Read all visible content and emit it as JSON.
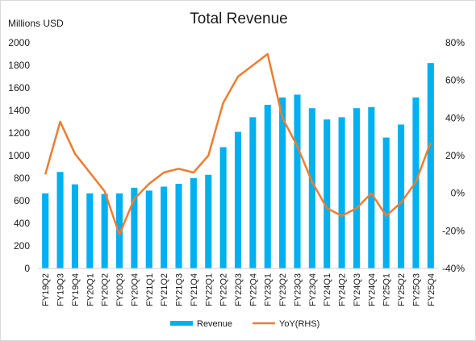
{
  "chart_data": {
    "type": "bar",
    "title": "Total Revenue",
    "ylabel": "Millions USD",
    "ylim": [
      0,
      2000
    ],
    "yticks": [
      "0",
      "200",
      "400",
      "600",
      "800",
      "1000",
      "1200",
      "1400",
      "1600",
      "1800",
      "2000"
    ],
    "y2lim": [
      -40,
      80
    ],
    "y2ticks": [
      "-40%",
      "-20%",
      "0%",
      "20%",
      "40%",
      "60%",
      "80%"
    ],
    "categories": [
      "FY19Q2",
      "FY19Q3",
      "FY19Q4",
      "FY20Q1",
      "FY20Q2",
      "FY20Q3",
      "FY20Q4",
      "FY21Q1",
      "FY21Q2",
      "FY21Q3",
      "FY21Q4",
      "FY22Q1",
      "FY22Q2",
      "FY22Q3",
      "FY22Q4",
      "FY23Q1",
      "FY23Q2",
      "FY23Q3",
      "FY23Q4",
      "FY24Q1",
      "FY24Q2",
      "FY24Q3",
      "FY24Q4",
      "FY25Q1",
      "FY25Q2",
      "FY25Q3",
      "FY25Q4"
    ],
    "grid": false,
    "legend_position": "bottom",
    "series": [
      {
        "name": "Revenue",
        "type": "bar",
        "axis": "left",
        "color": "#00b0f0",
        "values": [
          665,
          855,
          745,
          665,
          660,
          665,
          715,
          690,
          725,
          750,
          800,
          830,
          1075,
          1210,
          1340,
          1450,
          1515,
          1540,
          1420,
          1320,
          1340,
          1420,
          1430,
          1160,
          1275,
          1515,
          1820
        ]
      },
      {
        "name": "YoY(RHS)",
        "type": "line",
        "axis": "right",
        "color": "#ed7d31",
        "values": [
          10,
          38,
          21,
          11,
          1,
          -22,
          -3,
          5,
          11,
          13,
          11,
          20,
          48,
          62,
          68,
          74,
          40,
          25,
          6,
          -8,
          -12,
          -8,
          0,
          -12,
          -5,
          6,
          27
        ]
      }
    ]
  }
}
